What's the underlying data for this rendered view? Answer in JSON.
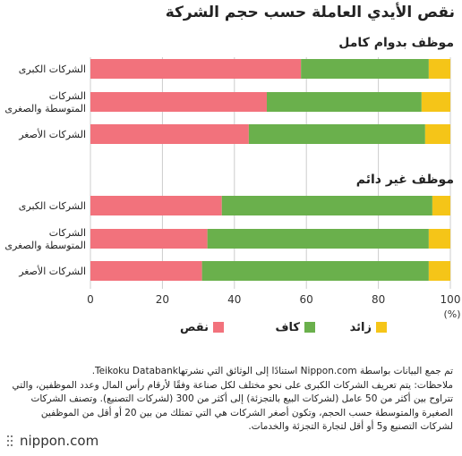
{
  "title": "نقص الأيدي العاملة حسب حجم الشركة",
  "chart_data": {
    "type": "bar",
    "orientation": "horizontal",
    "stacked": true,
    "xlim": [
      0,
      100
    ],
    "xticks": [
      0,
      20,
      40,
      60,
      80,
      100
    ],
    "x_unit": "(%)",
    "grid": true,
    "legend_position": "bottom",
    "series": [
      {
        "name": "نقص",
        "color": "#f2727c"
      },
      {
        "name": "كاف",
        "color": "#6ab04c"
      },
      {
        "name": "زائد",
        "color": "#f5c518"
      }
    ],
    "panels": [
      {
        "heading": "موظف بدوام كامل",
        "categories": [
          "الشركات الكبرى",
          "الشركات\nالمتوسطة والصغرى",
          "الشركات الأصغر"
        ],
        "values": [
          [
            58.5,
            35.5,
            6.0
          ],
          [
            49.0,
            43.0,
            8.0
          ],
          [
            44.0,
            49.0,
            7.0
          ]
        ]
      },
      {
        "heading": "موظف غير دائم",
        "categories": [
          "الشركات الكبرى",
          "الشركات\nالمتوسطة والصغرى",
          "الشركات الأصغر"
        ],
        "values": [
          [
            36.5,
            58.5,
            5.0
          ],
          [
            32.5,
            61.5,
            6.0
          ],
          [
            31.0,
            63.0,
            6.0
          ]
        ]
      }
    ]
  },
  "notes": [
    "تم جمع البيانات بواسطة Nippon.com استنادًا إلى الوثائق التي نشرتهاTeikoku Databank.",
    "ملاحظات: يتم تعريف الشركات الكبرى على نحو مختلف لكل صناعة وفقًا لأرقام رأس المال وعدد الموظفين، والتي تتراوح بين أكثر من 50 عامل (لشركات البيع بالتجزئة) إلى أكثر من 300 (لشركات التصنيع). وتصنف الشركات الصغيرة والمتوسطة حسب الحجم، وتكون أصغر الشركات هي التي تمتلك من بين 20 أو أقل من الموظفين لشركات التصنيع و5 أو أقل لتجارة التجزئة والخدمات."
  ],
  "logo": "nippon.com"
}
